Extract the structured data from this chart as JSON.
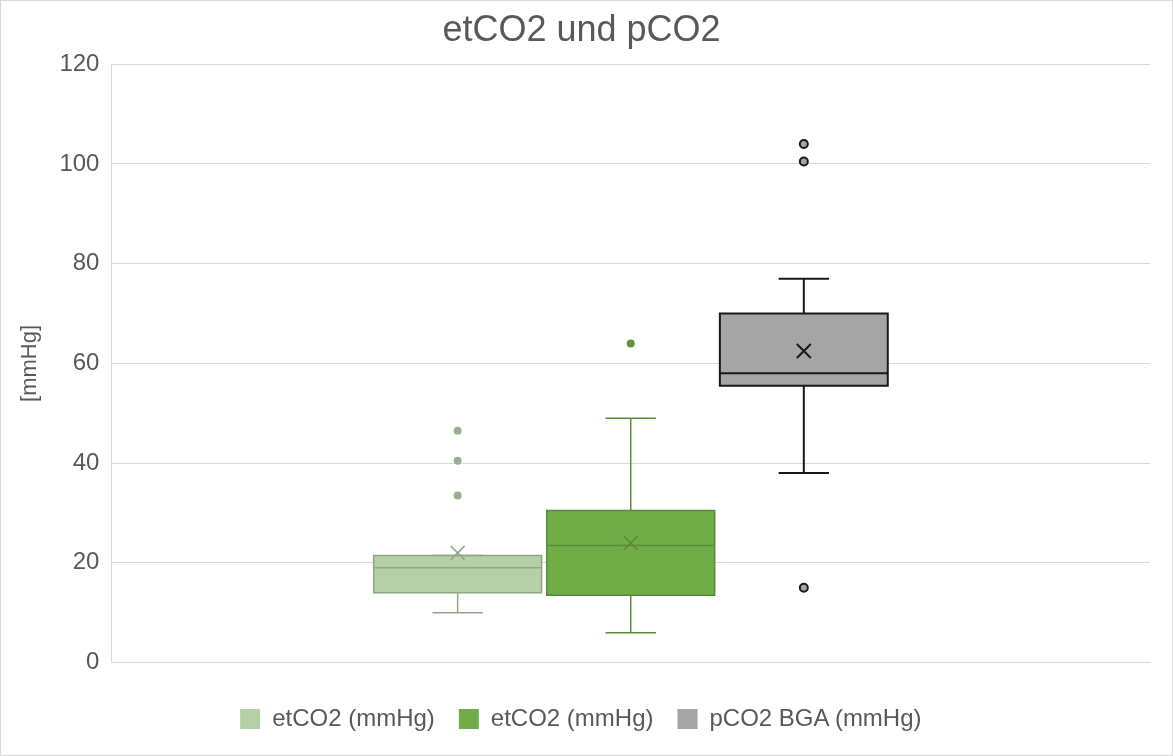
{
  "chart_data": {
    "type": "box",
    "title": "etCO2 und pCO2",
    "ylabel": "[mmHg]",
    "categories": [
      null
    ],
    "series": [
      {
        "name": "etCO2 (mmHg)",
        "color": "#b5d0a6",
        "boxes": [
          {
            "low": 10,
            "q1": 14,
            "median": 19,
            "q3": 21.5,
            "high": 21.5,
            "mean": 22,
            "outliers": [
              33.5,
              40.5,
              46.5
            ]
          }
        ]
      },
      {
        "name": "etCO2 (mmHg)",
        "color": "#70ad47",
        "boxes": [
          {
            "low": 6,
            "q1": 13.5,
            "median": 23.5,
            "q3": 30.5,
            "high": 49,
            "mean": 24,
            "outliers": [
              64
            ]
          }
        ]
      },
      {
        "name": "pCO2 BGA (mmHg)",
        "color": "#a5a5a5",
        "boxes": [
          {
            "low": 38,
            "q1": 55.5,
            "median": 58,
            "q3": 70,
            "high": 77,
            "mean": 62.5,
            "outliers": [
              15,
              100.5,
              104
            ]
          }
        ]
      }
    ],
    "ylim": [
      0,
      120
    ],
    "yticks": [
      0,
      20,
      40,
      60,
      80,
      100,
      120
    ],
    "grid": "y",
    "legend": "bottom",
    "marker": "circle"
  }
}
